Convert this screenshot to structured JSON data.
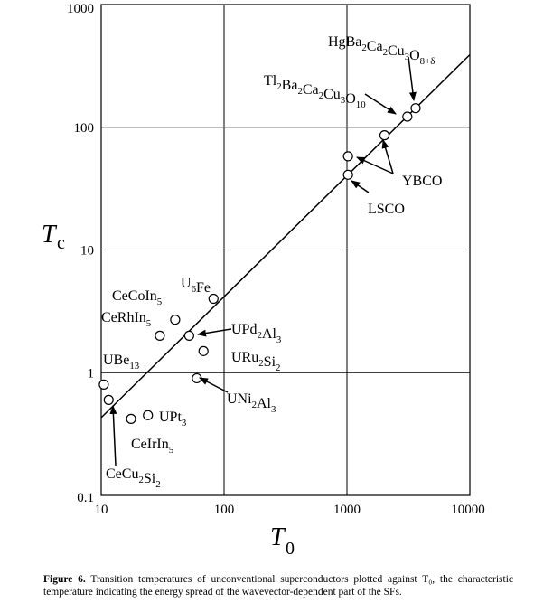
{
  "chart_data": {
    "type": "scatter",
    "x_scale": "log",
    "y_scale": "log",
    "xlim": [
      10,
      10000
    ],
    "ylim": [
      0.1,
      1000
    ],
    "grid": true,
    "x_ticks": [
      {
        "value": 10,
        "label": "10"
      },
      {
        "value": 100,
        "label": "100"
      },
      {
        "value": 1000,
        "label": "1000"
      },
      {
        "value": 10000,
        "label": "10000"
      }
    ],
    "y_ticks": [
      {
        "value": 0.1,
        "label": "0.1"
      },
      {
        "value": 1,
        "label": "1"
      },
      {
        "value": 10,
        "label": "10"
      },
      {
        "value": 100,
        "label": "100"
      },
      {
        "value": 1000,
        "label": "1000"
      }
    ],
    "xlabel": {
      "main": "T",
      "sub": "0"
    },
    "ylabel": {
      "main": "T",
      "sub": "c"
    },
    "fit_line": {
      "x": [
        10,
        10000
      ],
      "y": [
        0.43,
        390
      ]
    },
    "points": [
      {
        "x": 10.5,
        "y": 0.8
      },
      {
        "x": 11.5,
        "y": 0.6
      },
      {
        "x": 17.5,
        "y": 0.42
      },
      {
        "x": 24,
        "y": 0.45
      },
      {
        "x": 30,
        "y": 2.0
      },
      {
        "x": 40,
        "y": 2.7
      },
      {
        "x": 52,
        "y": 2.0
      },
      {
        "x": 60,
        "y": 0.9
      },
      {
        "x": 68,
        "y": 1.5
      },
      {
        "x": 82,
        "y": 4.0
      },
      {
        "x": 1020,
        "y": 58
      },
      {
        "x": 1020,
        "y": 41
      },
      {
        "x": 2020,
        "y": 86
      },
      {
        "x": 3100,
        "y": 122
      },
      {
        "x": 3620,
        "y": 143
      }
    ],
    "annotations": [
      {
        "id": "hg",
        "parts": [
          [
            "Hg",
            ""
          ],
          [
            "Ba",
            "2"
          ],
          [
            "Ca",
            "2"
          ],
          [
            "Cu",
            "3"
          ],
          [
            "O",
            "8+δ"
          ]
        ]
      },
      {
        "id": "tl",
        "parts": [
          [
            "Tl",
            "2"
          ],
          [
            "Ba",
            "2"
          ],
          [
            "Ca",
            "2"
          ],
          [
            "Cu",
            "3"
          ],
          [
            "O",
            "10"
          ]
        ]
      },
      {
        "id": "ybco",
        "parts": [
          [
            "YBCO",
            ""
          ]
        ]
      },
      {
        "id": "lsco",
        "parts": [
          [
            "LSCO",
            ""
          ]
        ]
      },
      {
        "id": "u6fe",
        "parts": [
          [
            "U",
            "6"
          ],
          [
            "Fe",
            ""
          ]
        ]
      },
      {
        "id": "cecoin",
        "parts": [
          [
            "CeCoIn",
            "5"
          ]
        ]
      },
      {
        "id": "cerhin",
        "parts": [
          [
            "CeRhIn",
            "5"
          ]
        ]
      },
      {
        "id": "upd",
        "parts": [
          [
            "UPd",
            "2"
          ],
          [
            "Al",
            "3"
          ]
        ]
      },
      {
        "id": "uru",
        "parts": [
          [
            "URu",
            "2"
          ],
          [
            "Si",
            "2"
          ]
        ]
      },
      {
        "id": "ube",
        "parts": [
          [
            "UBe",
            "13"
          ]
        ]
      },
      {
        "id": "uni",
        "parts": [
          [
            "UNi",
            "2"
          ],
          [
            "Al",
            "3"
          ]
        ]
      },
      {
        "id": "upt",
        "parts": [
          [
            "UPt",
            "3"
          ]
        ]
      },
      {
        "id": "ceir",
        "parts": [
          [
            "CeIrIn",
            "5"
          ]
        ]
      },
      {
        "id": "cecu",
        "parts": [
          [
            "CeCu",
            "2"
          ],
          [
            "Si",
            "2"
          ]
        ]
      }
    ]
  },
  "caption": {
    "label": "Figure 6.",
    "text": "Transition temperatures of unconventional superconductors plotted against T₀, the characteristic temperature indicating the energy spread of the wavevector-dependent part of the SFs."
  }
}
